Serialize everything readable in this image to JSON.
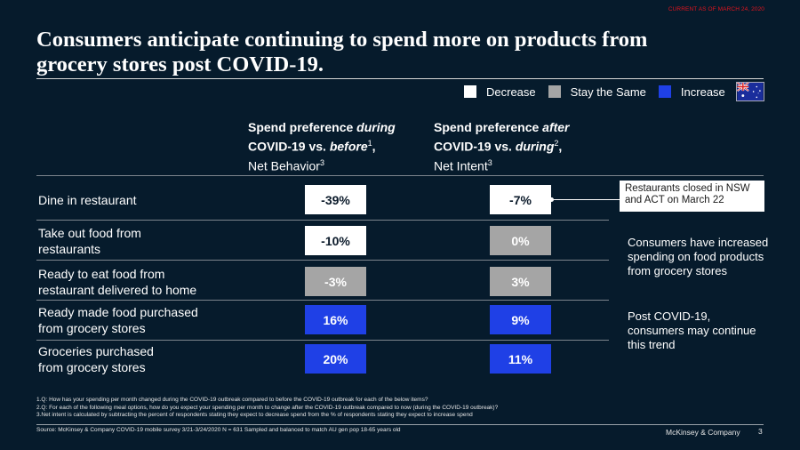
{
  "tracker": "CURRENT AS OF MARCH 24, 2020",
  "title_line1": "Consumers anticipate continuing to spend more on products from",
  "title_line2": "grocery stores post COVID-19.",
  "legend": [
    {
      "label": "Decrease",
      "color": "#ffffff"
    },
    {
      "label": "Stay the Same",
      "color": "#a5a5a5"
    },
    {
      "label": "Increase",
      "color": "#1f40e6"
    }
  ],
  "flag_icon": "australia-flag-icon",
  "chart_data": {
    "type": "table",
    "title": "Consumers anticipate continuing to spend more on products from grocery stores post COVID-19.",
    "columns": [
      {
        "bold1": "Spend preference ",
        "italic1": "during",
        "bold2": "COVID-19  vs. ",
        "italic2": "before",
        "sup": "1",
        "tail": ",",
        "line3": "Net Behavior",
        "sup3": "3"
      },
      {
        "bold1": "Spend preference ",
        "italic1": "after",
        "bold2": "COVID-19  vs. ",
        "italic2": "during",
        "sup": "2",
        "tail": ",",
        "line3": "Net Intent",
        "sup3": "3"
      }
    ],
    "categories": [
      "Dine in restaurant",
      "Take out food from restaurants",
      "Ready to eat food from restaurant delivered to home",
      "Ready made food purchased from grocery stores",
      "Groceries purchased from grocery stores"
    ],
    "series": [
      {
        "name": "Spend preference during COVID-19 vs. before, Net Behavior",
        "values": [
          -39,
          -10,
          -3,
          16,
          20
        ],
        "labels": [
          "-39%",
          "-10%",
          "-3%",
          "16%",
          "20%"
        ],
        "status": [
          "Decrease",
          "Decrease",
          "Stay the Same",
          "Increase",
          "Increase"
        ]
      },
      {
        "name": "Spend preference after COVID-19 vs. during, Net Intent",
        "values": [
          -7,
          0,
          3,
          9,
          11
        ],
        "labels": [
          "-7%",
          "0%",
          "3%",
          "9%",
          "11%"
        ],
        "status": [
          "Decrease",
          "Stay the Same",
          "Stay the Same",
          "Increase",
          "Increase"
        ]
      }
    ],
    "colors": {
      "Decrease": "#ffffff",
      "Stay the Same": "#a5a5a5",
      "Increase": "#1f40e6"
    },
    "annotations": [
      "Restaurants closed in NSW and ACT on March 22"
    ]
  },
  "rows_display": [
    {
      "line1": "Dine in restaurant",
      "line2": ""
    },
    {
      "line1": "Take out food from",
      "line2": "restaurants"
    },
    {
      "line1": "Ready to eat food from",
      "line2": "restaurant delivered to home"
    },
    {
      "line1": "Ready made  food purchased",
      "line2": "from grocery stores"
    },
    {
      "line1": "Groceries purchased",
      "line2": "from grocery stores"
    }
  ],
  "callout": "Restaurants  closed in NSW and ACT on March 22",
  "note1": "Consumers have increased spending on food products from grocery stores",
  "note2": "Post COVID-19, consumers may continue this trend",
  "footnotes": [
    "1.Q: How has your spending per month  changed during the COVID-19  outbreak compared to before the COVID-19  outbreak for each of the below items?",
    "2.Q: For each of the following meal options, how do you expect your spending per month to change after the COVID-19  outbreak compared to now (during the COVID-19  outbreak)?",
    "3.Net  intent is calculated by subtracting the percent of respondents stating they expect to decrease spend from the % of respondents stating they expect to increase spend"
  ],
  "source": "Source: McKinsey & Company  COVID-19  mobile  survey  3/21-3/24/2020 N = 631  Sampled  and balanced to match AU gen pop 18-65 years old",
  "brand": "McKinsey & Company",
  "page_number": "3"
}
